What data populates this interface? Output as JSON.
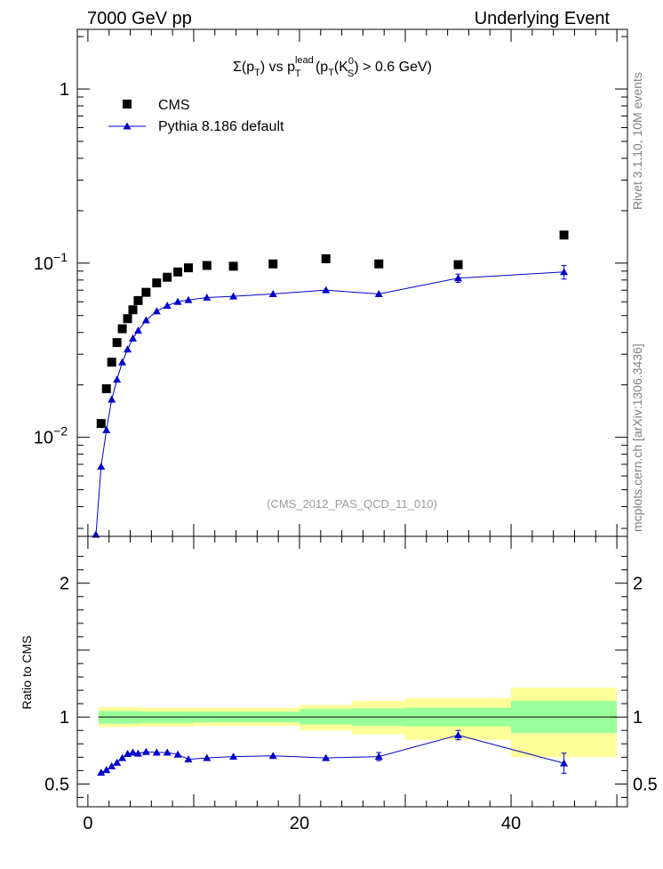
{
  "header": {
    "left": "7000 GeV pp",
    "right": "Underlying Event"
  },
  "side_labels": {
    "rivet": "Rivet 3.1.10, 10M events",
    "source": "mcplots.cern.ch [arXiv:1306.3436]"
  },
  "plot": {
    "title_parts": {
      "sigma": "Σ(p",
      "t1": "T",
      "vs": ") vs p",
      "lead": "lead",
      "t2": "T",
      "open": " (p",
      "t3": "T",
      "k": "(K",
      "zero": "0",
      "s": "S",
      "tail": ") > 0.6 GeV)"
    },
    "analysis_id": "(CMS_2012_PAS_QCD_11_010)"
  },
  "chart_data": [
    {
      "type": "scatter",
      "yscale": "log",
      "xlim": [
        -1,
        51
      ],
      "ylim": [
        0.0027,
        2.2
      ],
      "legend_position": "top-left",
      "yticks": [
        {
          "value": 0.01,
          "base": "10",
          "exp": "−2"
        },
        {
          "value": 0.1,
          "base": "10",
          "exp": "−1"
        },
        {
          "value": 1,
          "base": "1",
          "exp": ""
        }
      ],
      "series": [
        {
          "name": "CMS",
          "color": "#000000",
          "marker": "square",
          "x": [
            1.25,
            1.75,
            2.25,
            2.75,
            3.25,
            3.75,
            4.25,
            4.75,
            5.5,
            6.5,
            7.5,
            8.5,
            9.5,
            11.25,
            13.75,
            17.5,
            22.5,
            27.5,
            35.0,
            45.0
          ],
          "y": [
            0.012,
            0.019,
            0.027,
            0.035,
            0.042,
            0.048,
            0.054,
            0.061,
            0.068,
            0.077,
            0.083,
            0.089,
            0.094,
            0.097,
            0.096,
            0.099,
            0.106,
            0.099,
            0.098,
            0.145
          ]
        },
        {
          "name": "Pythia 8.186 default",
          "color": "#0000cc",
          "marker": "triangle",
          "x": [
            0.75,
            1.25,
            1.75,
            2.25,
            2.75,
            3.25,
            3.75,
            4.25,
            4.75,
            5.5,
            6.5,
            7.5,
            8.5,
            9.5,
            11.25,
            13.75,
            17.5,
            22.5,
            27.5,
            35.0,
            45.0
          ],
          "y": [
            0.0027,
            0.0068,
            0.011,
            0.0165,
            0.0215,
            0.027,
            0.032,
            0.037,
            0.041,
            0.047,
            0.053,
            0.057,
            0.06,
            0.0615,
            0.0635,
            0.0645,
            0.0665,
            0.07,
            0.0665,
            0.082,
            0.089
          ],
          "yerr": [
            0,
            0,
            0,
            0,
            0,
            0,
            0,
            0,
            0,
            0,
            0,
            0,
            0,
            0,
            0,
            0,
            0,
            0,
            0,
            0.0045,
            0.008
          ]
        }
      ]
    },
    {
      "type": "line",
      "xlim": [
        -1,
        51
      ],
      "ylim": [
        0.33,
        2.35
      ],
      "ylabel": "Ratio to CMS",
      "yticks": [
        {
          "value": 0.5,
          "label": "0.5"
        },
        {
          "value": 1,
          "label": "1"
        },
        {
          "value": 2,
          "label": "2"
        }
      ],
      "xticks": [
        {
          "value": 0,
          "label": "0"
        },
        {
          "value": 20,
          "label": "20"
        },
        {
          "value": 40,
          "label": "40"
        }
      ],
      "bands": [
        {
          "x0": 1.0,
          "x1": 5.0,
          "stat_lo": 0.95,
          "stat_hi": 1.045,
          "tot_lo": 0.925,
          "tot_hi": 1.075
        },
        {
          "x0": 5.0,
          "x1": 10.0,
          "stat_lo": 0.955,
          "stat_hi": 1.04,
          "tot_lo": 0.93,
          "tot_hi": 1.07
        },
        {
          "x0": 10.0,
          "x1": 15.0,
          "stat_lo": 0.96,
          "stat_hi": 1.04,
          "tot_lo": 0.935,
          "tot_hi": 1.07
        },
        {
          "x0": 15.0,
          "x1": 20.0,
          "stat_lo": 0.96,
          "stat_hi": 1.04,
          "tot_lo": 0.935,
          "tot_hi": 1.07
        },
        {
          "x0": 20.0,
          "x1": 25.0,
          "stat_lo": 0.945,
          "stat_hi": 1.06,
          "tot_lo": 0.9,
          "tot_hi": 1.09
        },
        {
          "x0": 25.0,
          "x1": 30.0,
          "stat_lo": 0.935,
          "stat_hi": 1.065,
          "tot_lo": 0.87,
          "tot_hi": 1.12
        },
        {
          "x0": 30.0,
          "x1": 40.0,
          "stat_lo": 0.93,
          "stat_hi": 1.07,
          "tot_lo": 0.83,
          "tot_hi": 1.14
        },
        {
          "x0": 40.0,
          "x1": 50.0,
          "stat_lo": 0.88,
          "stat_hi": 1.12,
          "tot_lo": 0.7,
          "tot_hi": 1.22
        }
      ],
      "ratio": {
        "name": "Pythia 8.186 default",
        "color": "#0000cc",
        "x": [
          1.25,
          1.75,
          2.25,
          2.75,
          3.25,
          3.75,
          4.25,
          4.75,
          5.5,
          6.5,
          7.5,
          8.5,
          9.5,
          11.25,
          13.75,
          17.5,
          22.5,
          27.5,
          35.0,
          45.0
        ],
        "y": [
          0.585,
          0.605,
          0.632,
          0.66,
          0.695,
          0.725,
          0.735,
          0.728,
          0.74,
          0.735,
          0.735,
          0.72,
          0.685,
          0.695,
          0.705,
          0.71,
          0.695,
          0.705,
          0.865,
          0.655
        ],
        "yerr": [
          0,
          0,
          0,
          0,
          0,
          0,
          0,
          0,
          0,
          0,
          0,
          0,
          0,
          0,
          0,
          0,
          0,
          0.03,
          0.035,
          0.075
        ]
      }
    }
  ]
}
